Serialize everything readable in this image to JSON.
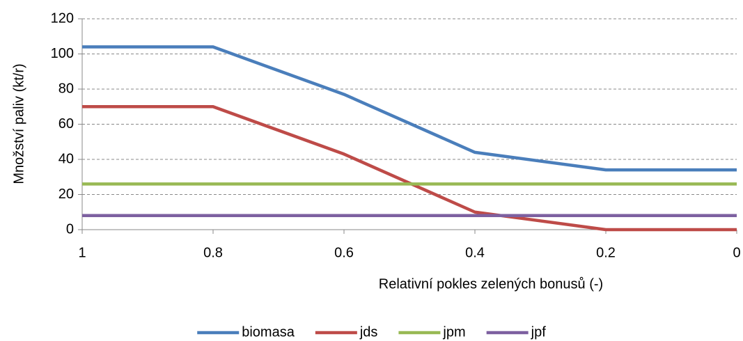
{
  "chart_data": {
    "type": "line",
    "xlabel": "Relativní pokles zelených bonusů (-)",
    "ylabel": "Množství paliv (kt/r)",
    "x": [
      1,
      0.8,
      0.6,
      0.4,
      0.2,
      0
    ],
    "series": [
      {
        "name": "biomasa",
        "color": "#4a7ebb",
        "values": [
          104,
          104,
          77,
          44,
          34,
          34
        ]
      },
      {
        "name": "jds",
        "color": "#be4b48",
        "values": [
          70,
          70,
          43,
          10,
          0,
          0
        ]
      },
      {
        "name": "jpm",
        "color": "#98b954",
        "values": [
          26,
          26,
          26,
          26,
          26,
          26
        ]
      },
      {
        "name": "jpf",
        "color": "#7d60a0",
        "values": [
          8,
          8,
          8,
          8,
          8,
          8
        ]
      }
    ],
    "xlim": [
      1,
      0
    ],
    "xticks": [
      1,
      0.8,
      0.6,
      0.4,
      0.2,
      0
    ],
    "ylim": [
      0,
      120
    ],
    "yticks": [
      0,
      20,
      40,
      60,
      80,
      100,
      120
    ],
    "grid": true,
    "legend": "bottom"
  }
}
